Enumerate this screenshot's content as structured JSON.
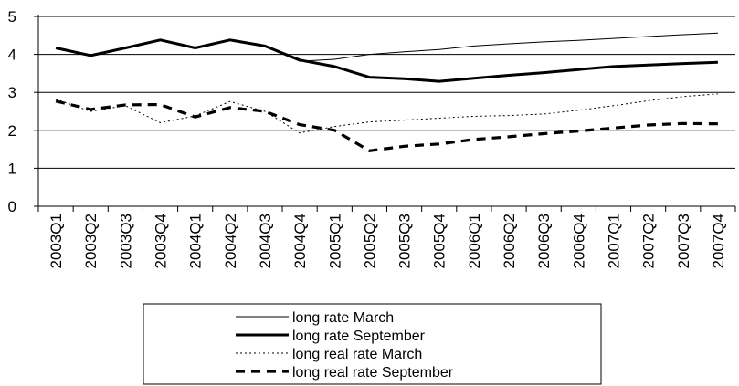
{
  "chart_data": {
    "type": "line",
    "categories": [
      "2003Q1",
      "2003Q2",
      "2003Q3",
      "2003Q4",
      "2004Q1",
      "2004Q2",
      "2004Q3",
      "2004Q4",
      "2005Q1",
      "2005Q2",
      "2005Q3",
      "2005Q4",
      "2006Q1",
      "2006Q2",
      "2006Q3",
      "2006Q4",
      "2007Q1",
      "2007Q2",
      "2007Q3",
      "2007Q4"
    ],
    "ylim": [
      0,
      5
    ],
    "yticks": [
      0,
      1,
      2,
      3,
      4,
      5
    ],
    "grid": "horizontal",
    "legend_position": "bottom",
    "series": [
      {
        "name": "long rate March",
        "style": "thin-solid",
        "color": "#000000",
        "values": [
          4.15,
          3.95,
          4.15,
          4.38,
          4.15,
          4.38,
          4.2,
          3.82,
          3.87,
          4.0,
          4.07,
          4.13,
          4.22,
          4.28,
          4.33,
          4.37,
          4.42,
          4.47,
          4.52,
          4.56
        ]
      },
      {
        "name": "long rate September",
        "style": "thick-solid",
        "color": "#000000",
        "values": [
          4.17,
          3.97,
          4.17,
          4.38,
          4.17,
          4.38,
          4.22,
          3.85,
          3.68,
          3.4,
          3.36,
          3.29,
          3.37,
          3.45,
          3.52,
          3.6,
          3.68,
          3.72,
          3.76,
          3.79
        ]
      },
      {
        "name": "long real rate March",
        "style": "thin-dotted",
        "color": "#000000",
        "values": [
          2.82,
          2.5,
          2.65,
          2.2,
          2.38,
          2.76,
          2.5,
          1.93,
          2.1,
          2.22,
          2.27,
          2.32,
          2.37,
          2.39,
          2.43,
          2.53,
          2.65,
          2.78,
          2.89,
          2.96
        ]
      },
      {
        "name": "long real rate September",
        "style": "thick-dashed",
        "color": "#000000",
        "values": [
          2.77,
          2.55,
          2.67,
          2.68,
          2.35,
          2.6,
          2.5,
          2.15,
          2.0,
          1.46,
          1.58,
          1.64,
          1.76,
          1.83,
          1.91,
          1.98,
          2.06,
          2.14,
          2.18,
          2.17
        ]
      }
    ]
  }
}
